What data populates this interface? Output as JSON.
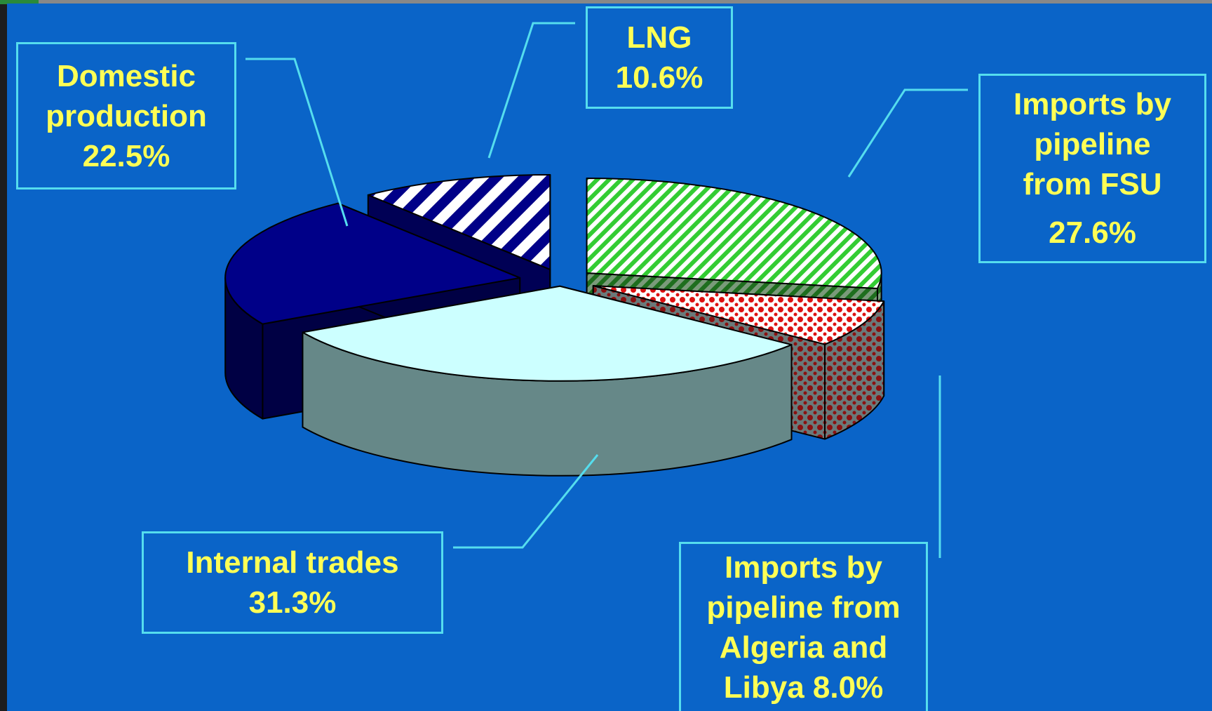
{
  "chart_data": {
    "type": "pie",
    "style": "3d-exploded",
    "slices": [
      {
        "label": [
          "Imports by",
          "pipeline",
          "from FSU"
        ],
        "value_text": "27.6%",
        "value": 27.6,
        "color": "#33cc33"
      },
      {
        "label": [
          "Imports by",
          "pipeline from",
          "Algeria and"
        ],
        "value_text": "Libya 8.0%",
        "value": 8.0,
        "color": "#cc1111"
      },
      {
        "label": [
          "Internal trades"
        ],
        "value_text": "31.3%",
        "value": 31.3,
        "color": "#ccffff"
      },
      {
        "label": [
          "Domestic",
          "production"
        ],
        "value_text": "22.5%",
        "value": 22.5,
        "color": "#000088"
      },
      {
        "label": [
          "LNG"
        ],
        "value_text": "10.6%",
        "value": 10.6,
        "color": "#ffffff"
      }
    ],
    "colors": {
      "background": "#0a64c8",
      "label_text": "#ffff55",
      "label_border": "#55ddee"
    }
  }
}
